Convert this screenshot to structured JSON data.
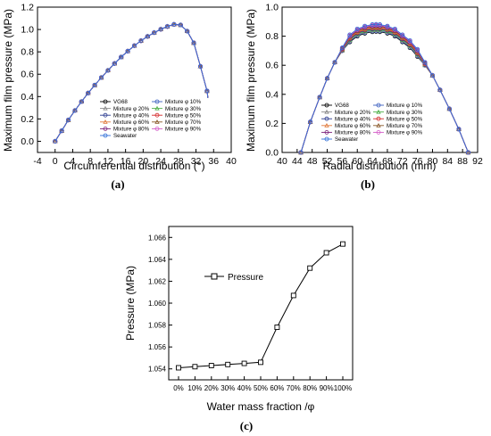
{
  "figure": {
    "panels": [
      {
        "id": "a",
        "caption": "(a)"
      },
      {
        "id": "b",
        "caption": "(b)"
      },
      {
        "id": "c",
        "caption": "(c)"
      }
    ]
  },
  "legend_names": [
    "VG68",
    "Mixture φ 10%",
    "Mixture φ 20%",
    "Mixture φ 30%",
    "Mixture φ 40%",
    "Mixture φ 50%",
    "Mixture φ 60%",
    "Mixture φ 70%",
    "Mixture φ 80%",
    "Mixture φ 90%",
    "Seawater"
  ],
  "series_colors": [
    "#000000",
    "#3b5fc0",
    "#8a8a8a",
    "#4fb04a",
    "#2a3a8f",
    "#d42b2b",
    "#e07a3c",
    "#8a5a2b",
    "#7a1f7a",
    "#d45cc8",
    "#2f6fd8"
  ],
  "chart_data": [
    {
      "type": "line",
      "title": "",
      "xlabel": "Circumferential distribution (°)",
      "ylabel": "Maximum film pressure (MPa)",
      "xlim": [
        -4,
        40
      ],
      "ylim": [
        -0.1,
        1.2
      ],
      "xticks": [
        "-4",
        "0",
        "4",
        "8",
        "12",
        "16",
        "20",
        "24",
        "28",
        "32",
        "36",
        "40"
      ],
      "yticks": [
        "0.0",
        "0.2",
        "0.4",
        "0.6",
        "0.8",
        "1.0",
        "1.2"
      ],
      "legend_position": "bottom-center",
      "x": [
        0,
        1.5,
        3,
        4.5,
        6,
        7.5,
        9,
        10.5,
        12,
        13.5,
        15,
        16.5,
        18,
        19.5,
        21,
        22.5,
        24,
        25.5,
        27,
        28.5,
        30,
        31.5,
        33,
        34.5,
        36
      ],
      "series": [
        {
          "name": "VG68",
          "values": [
            0,
            0.094,
            0.19,
            0.275,
            0.355,
            0.431,
            0.502,
            0.57,
            0.634,
            0.696,
            0.753,
            0.806,
            0.855,
            0.899,
            0.938,
            0.972,
            1.002,
            1.027,
            1.045,
            1.04,
            0.985,
            0.88,
            0.67,
            0.45,
            0
          ]
        },
        {
          "name": "Mixture φ 10%",
          "values": [
            0,
            0.094,
            0.19,
            0.275,
            0.355,
            0.431,
            0.502,
            0.57,
            0.634,
            0.696,
            0.753,
            0.806,
            0.855,
            0.899,
            0.938,
            0.972,
            1.002,
            1.027,
            1.045,
            1.04,
            0.985,
            0.88,
            0.67,
            0.45,
            0
          ]
        },
        {
          "name": "Mixture φ 20%",
          "values": [
            0,
            0.094,
            0.19,
            0.275,
            0.355,
            0.431,
            0.502,
            0.57,
            0.634,
            0.696,
            0.753,
            0.806,
            0.855,
            0.899,
            0.938,
            0.972,
            1.002,
            1.027,
            1.045,
            1.04,
            0.985,
            0.88,
            0.67,
            0.45,
            0
          ]
        },
        {
          "name": "Mixture φ 30%",
          "values": [
            0,
            0.094,
            0.19,
            0.275,
            0.355,
            0.431,
            0.502,
            0.57,
            0.634,
            0.696,
            0.753,
            0.806,
            0.855,
            0.899,
            0.938,
            0.972,
            1.002,
            1.027,
            1.045,
            1.04,
            0.985,
            0.88,
            0.67,
            0.45,
            0
          ]
        },
        {
          "name": "Mixture φ 40%",
          "values": [
            0,
            0.094,
            0.19,
            0.275,
            0.355,
            0.431,
            0.502,
            0.57,
            0.634,
            0.696,
            0.753,
            0.806,
            0.855,
            0.899,
            0.938,
            0.972,
            1.002,
            1.027,
            1.045,
            1.04,
            0.985,
            0.88,
            0.67,
            0.45,
            0
          ]
        },
        {
          "name": "Mixture φ 50%",
          "values": [
            0,
            0.094,
            0.19,
            0.275,
            0.355,
            0.431,
            0.502,
            0.57,
            0.634,
            0.696,
            0.753,
            0.806,
            0.855,
            0.899,
            0.938,
            0.972,
            1.002,
            1.027,
            1.045,
            1.04,
            0.985,
            0.88,
            0.67,
            0.45,
            0
          ]
        },
        {
          "name": "Mixture φ 60%",
          "values": [
            0,
            0.094,
            0.19,
            0.275,
            0.355,
            0.431,
            0.502,
            0.57,
            0.634,
            0.696,
            0.753,
            0.806,
            0.855,
            0.899,
            0.938,
            0.972,
            1.002,
            1.027,
            1.045,
            1.04,
            0.985,
            0.88,
            0.67,
            0.45,
            0
          ]
        },
        {
          "name": "Mixture φ 70%",
          "values": [
            0,
            0.094,
            0.19,
            0.275,
            0.355,
            0.431,
            0.502,
            0.57,
            0.634,
            0.696,
            0.753,
            0.806,
            0.855,
            0.899,
            0.938,
            0.972,
            1.002,
            1.027,
            1.045,
            1.04,
            0.985,
            0.88,
            0.67,
            0.45,
            0
          ]
        },
        {
          "name": "Mixture φ 80%",
          "values": [
            0,
            0.094,
            0.19,
            0.275,
            0.355,
            0.431,
            0.502,
            0.57,
            0.634,
            0.696,
            0.753,
            0.806,
            0.855,
            0.899,
            0.938,
            0.972,
            1.002,
            1.027,
            1.045,
            1.04,
            0.985,
            0.88,
            0.67,
            0.45,
            0
          ]
        },
        {
          "name": "Mixture φ 90%",
          "values": [
            0,
            0.094,
            0.19,
            0.275,
            0.355,
            0.431,
            0.502,
            0.57,
            0.634,
            0.696,
            0.753,
            0.806,
            0.855,
            0.899,
            0.938,
            0.972,
            1.002,
            1.027,
            1.045,
            1.04,
            0.985,
            0.88,
            0.67,
            0.45,
            0
          ]
        },
        {
          "name": "Seawater",
          "values": [
            0,
            0.094,
            0.19,
            0.275,
            0.355,
            0.431,
            0.502,
            0.57,
            0.634,
            0.696,
            0.753,
            0.806,
            0.855,
            0.899,
            0.938,
            0.972,
            1.002,
            1.027,
            1.045,
            1.04,
            0.985,
            0.88,
            0.67,
            0.45,
            0
          ]
        }
      ]
    },
    {
      "type": "line",
      "title": "",
      "xlabel": "Radial distribution (mm)",
      "ylabel": "Maximum film pressure (MPa)",
      "xlim": [
        40,
        92
      ],
      "ylim": [
        0.0,
        1.0
      ],
      "xticks": [
        "40",
        "44",
        "48",
        "52",
        "56",
        "60",
        "64",
        "68",
        "72",
        "76",
        "80",
        "84",
        "88",
        "92"
      ],
      "yticks": [
        "0.0",
        "0.2",
        "0.4",
        "0.6",
        "0.8",
        "1.0"
      ],
      "legend_position": "bottom-center",
      "x": [
        45,
        47.5,
        50,
        52,
        54,
        56,
        58,
        60,
        62,
        64,
        65,
        66,
        68,
        70,
        72,
        74,
        76,
        78,
        80,
        82,
        84.5,
        87,
        89.5
      ],
      "series": [
        {
          "name": "VG68",
          "values": [
            0,
            0.21,
            0.38,
            0.51,
            0.62,
            0.7,
            0.76,
            0.8,
            0.82,
            0.83,
            0.832,
            0.83,
            0.82,
            0.8,
            0.76,
            0.72,
            0.66,
            0.6,
            0.53,
            0.43,
            0.3,
            0.16,
            0
          ]
        },
        {
          "name": "Mixture φ 10%",
          "values": [
            0,
            0.21,
            0.38,
            0.51,
            0.62,
            0.7,
            0.765,
            0.805,
            0.825,
            0.835,
            0.837,
            0.835,
            0.825,
            0.805,
            0.765,
            0.725,
            0.665,
            0.6,
            0.53,
            0.43,
            0.3,
            0.16,
            0
          ]
        },
        {
          "name": "Mixture φ 20%",
          "values": [
            0,
            0.21,
            0.38,
            0.51,
            0.62,
            0.7,
            0.77,
            0.81,
            0.83,
            0.84,
            0.842,
            0.84,
            0.83,
            0.81,
            0.77,
            0.73,
            0.67,
            0.6,
            0.53,
            0.43,
            0.3,
            0.16,
            0
          ]
        },
        {
          "name": "Mixture φ 30%",
          "values": [
            0,
            0.21,
            0.38,
            0.51,
            0.62,
            0.705,
            0.775,
            0.815,
            0.835,
            0.845,
            0.847,
            0.845,
            0.835,
            0.815,
            0.775,
            0.735,
            0.675,
            0.605,
            0.53,
            0.43,
            0.3,
            0.16,
            0
          ]
        },
        {
          "name": "Mixture φ 40%",
          "values": [
            0,
            0.21,
            0.38,
            0.51,
            0.62,
            0.705,
            0.78,
            0.82,
            0.84,
            0.85,
            0.852,
            0.85,
            0.84,
            0.82,
            0.78,
            0.74,
            0.68,
            0.605,
            0.53,
            0.43,
            0.3,
            0.16,
            0
          ]
        },
        {
          "name": "Mixture φ 50%",
          "values": [
            0,
            0.21,
            0.38,
            0.51,
            0.62,
            0.71,
            0.785,
            0.825,
            0.845,
            0.855,
            0.857,
            0.855,
            0.845,
            0.825,
            0.785,
            0.745,
            0.685,
            0.61,
            0.53,
            0.43,
            0.3,
            0.16,
            0
          ]
        },
        {
          "name": "Mixture φ 60%",
          "values": [
            0,
            0.21,
            0.38,
            0.51,
            0.62,
            0.71,
            0.79,
            0.83,
            0.85,
            0.86,
            0.862,
            0.86,
            0.85,
            0.83,
            0.79,
            0.75,
            0.69,
            0.61,
            0.53,
            0.43,
            0.3,
            0.16,
            0
          ]
        },
        {
          "name": "Mixture φ 70%",
          "values": [
            0,
            0.21,
            0.38,
            0.51,
            0.62,
            0.715,
            0.795,
            0.835,
            0.855,
            0.865,
            0.867,
            0.865,
            0.855,
            0.835,
            0.795,
            0.755,
            0.695,
            0.615,
            0.53,
            0.43,
            0.3,
            0.16,
            0
          ]
        },
        {
          "name": "Mixture φ 80%",
          "values": [
            0,
            0.21,
            0.38,
            0.51,
            0.62,
            0.715,
            0.8,
            0.84,
            0.86,
            0.87,
            0.872,
            0.87,
            0.86,
            0.84,
            0.8,
            0.76,
            0.7,
            0.615,
            0.53,
            0.43,
            0.3,
            0.16,
            0
          ]
        },
        {
          "name": "Mixture φ 90%",
          "values": [
            0,
            0.21,
            0.38,
            0.51,
            0.62,
            0.72,
            0.805,
            0.845,
            0.865,
            0.875,
            0.877,
            0.875,
            0.865,
            0.845,
            0.805,
            0.765,
            0.705,
            0.62,
            0.53,
            0.43,
            0.3,
            0.16,
            0
          ]
        },
        {
          "name": "Seawater",
          "values": [
            0,
            0.21,
            0.38,
            0.51,
            0.62,
            0.72,
            0.81,
            0.85,
            0.87,
            0.88,
            0.882,
            0.88,
            0.87,
            0.85,
            0.81,
            0.77,
            0.71,
            0.62,
            0.53,
            0.43,
            0.3,
            0.16,
            0
          ]
        }
      ]
    },
    {
      "type": "line",
      "title": "",
      "xlabel": "Water mass fraction /φ",
      "ylabel": "Pressure (MPa)",
      "ylim": [
        1.053,
        1.067
      ],
      "yticks": [
        "1.054",
        "1.056",
        "1.058",
        "1.060",
        "1.062",
        "1.064",
        "1.066"
      ],
      "categories": [
        "0%",
        "10%",
        "20%",
        "30%",
        "40%",
        "50%",
        "60%",
        "70%",
        "80%",
        "90%",
        "100%"
      ],
      "legend_position": "top-left",
      "series": [
        {
          "name": "Pressure",
          "values": [
            1.0541,
            1.0542,
            1.0543,
            1.0544,
            1.0545,
            1.0546,
            1.0578,
            1.0607,
            1.0632,
            1.0646,
            1.0654
          ]
        }
      ]
    }
  ]
}
